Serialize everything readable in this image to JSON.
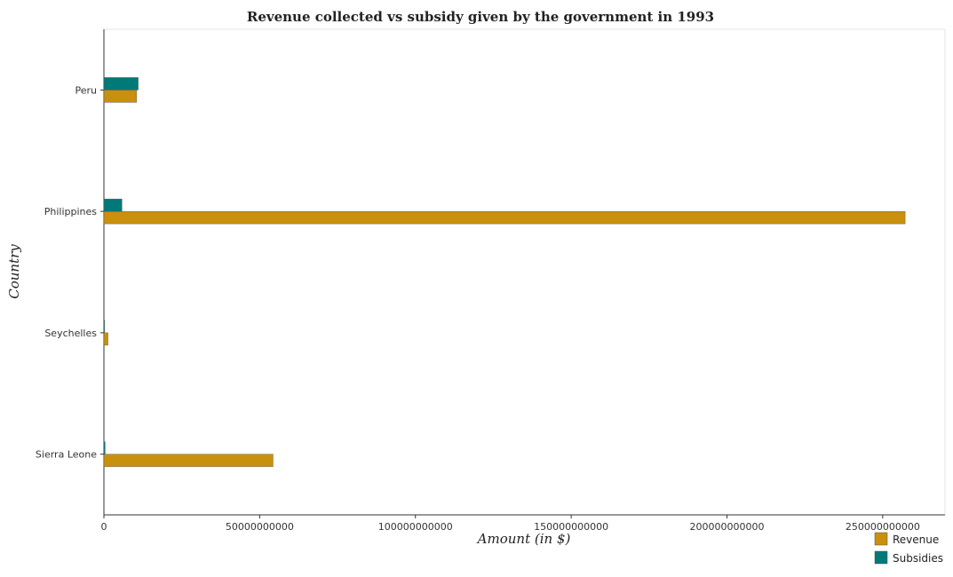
{
  "chart_data": {
    "type": "bar",
    "orientation": "horizontal",
    "title": "Revenue collected vs subsidy given by the government in 1993",
    "xlabel": "Amount (in $)",
    "ylabel": "Country",
    "categories": [
      "Peru",
      "Philippines",
      "Seychelles",
      "Sierra Leone"
    ],
    "series": [
      {
        "name": "Revenue",
        "color": "#c8900c",
        "values": [
          10500000000,
          257200000000,
          1300000000,
          54300000000
        ]
      },
      {
        "name": "Subsidies",
        "color": "#007a78",
        "values": [
          11000000000,
          5800000000,
          100000000,
          400000000
        ]
      }
    ],
    "xlim": [
      0,
      270000000000
    ],
    "xticks": [
      0,
      50000000000,
      100000000000,
      150000000000,
      200000000000,
      250000000000
    ],
    "xtick_labels": [
      "0",
      "50000000000",
      "100000000000",
      "150000000000",
      "200000000000",
      "250000000000"
    ],
    "legend_position": "bottom-right",
    "grid": false
  }
}
